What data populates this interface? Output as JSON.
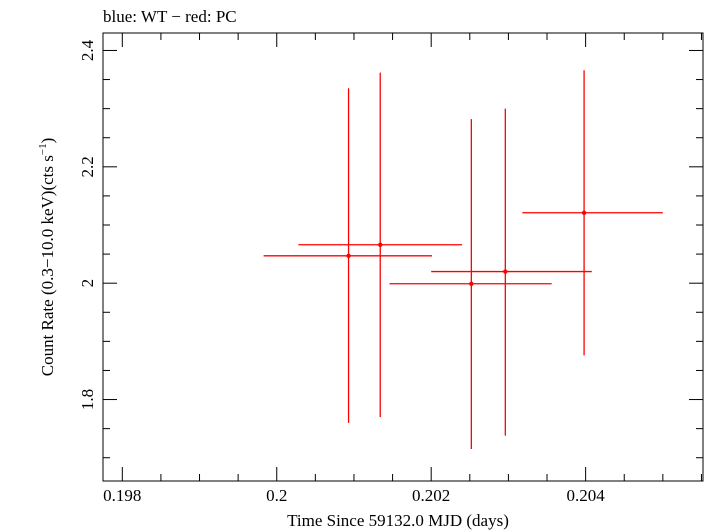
{
  "chart_data": {
    "type": "scatter",
    "title": "blue: WT − red: PC",
    "xlabel": "Time Since 59132.0 MJD (days)",
    "ylabel_main": "Count Rate (0.3−10.0 keV)(cts s",
    "ylabel_sup": "−1",
    "ylabel_end": ")",
    "xlim": [
      0.19775,
      0.20552
    ],
    "ylim": [
      1.66,
      2.43
    ],
    "x_ticks": [
      {
        "value": 0.198,
        "label": "0.198"
      },
      {
        "value": 0.2,
        "label": "0.2"
      },
      {
        "value": 0.202,
        "label": "0.202"
      },
      {
        "value": 0.204,
        "label": "0.204"
      }
    ],
    "x_minor_step": 0.0005,
    "y_ticks": [
      {
        "value": 1.8,
        "label": "1.8"
      },
      {
        "value": 2.0,
        "label": "2"
      },
      {
        "value": 2.2,
        "label": "2.2"
      },
      {
        "value": 2.4,
        "label": "2.4"
      }
    ],
    "y_minor_step": 0.05,
    "series": [
      {
        "name": "PC",
        "color": "#ff0000",
        "points": [
          {
            "x": 0.20093,
            "y": 2.047,
            "xerr_lo": 0.0011,
            "xerr_hi": 0.00108,
            "yerr_lo": 0.287,
            "yerr_hi": 0.288
          },
          {
            "x": 0.20296,
            "y": 2.02,
            "xerr_lo": 0.00096,
            "xerr_hi": 0.00112,
            "yerr_lo": 0.282,
            "yerr_hi": 0.28
          },
          {
            "x": 0.20134,
            "y": 2.066,
            "xerr_lo": 0.00106,
            "xerr_hi": 0.00106,
            "yerr_lo": 0.296,
            "yerr_hi": 0.296
          },
          {
            "x": 0.20252,
            "y": 1.999,
            "xerr_lo": 0.00106,
            "xerr_hi": 0.00104,
            "yerr_lo": 0.284,
            "yerr_hi": 0.283
          },
          {
            "x": 0.20398,
            "y": 2.121,
            "xerr_lo": 0.0008,
            "xerr_hi": 0.00102,
            "yerr_lo": 0.245,
            "yerr_hi": 0.245
          }
        ]
      }
    ]
  }
}
